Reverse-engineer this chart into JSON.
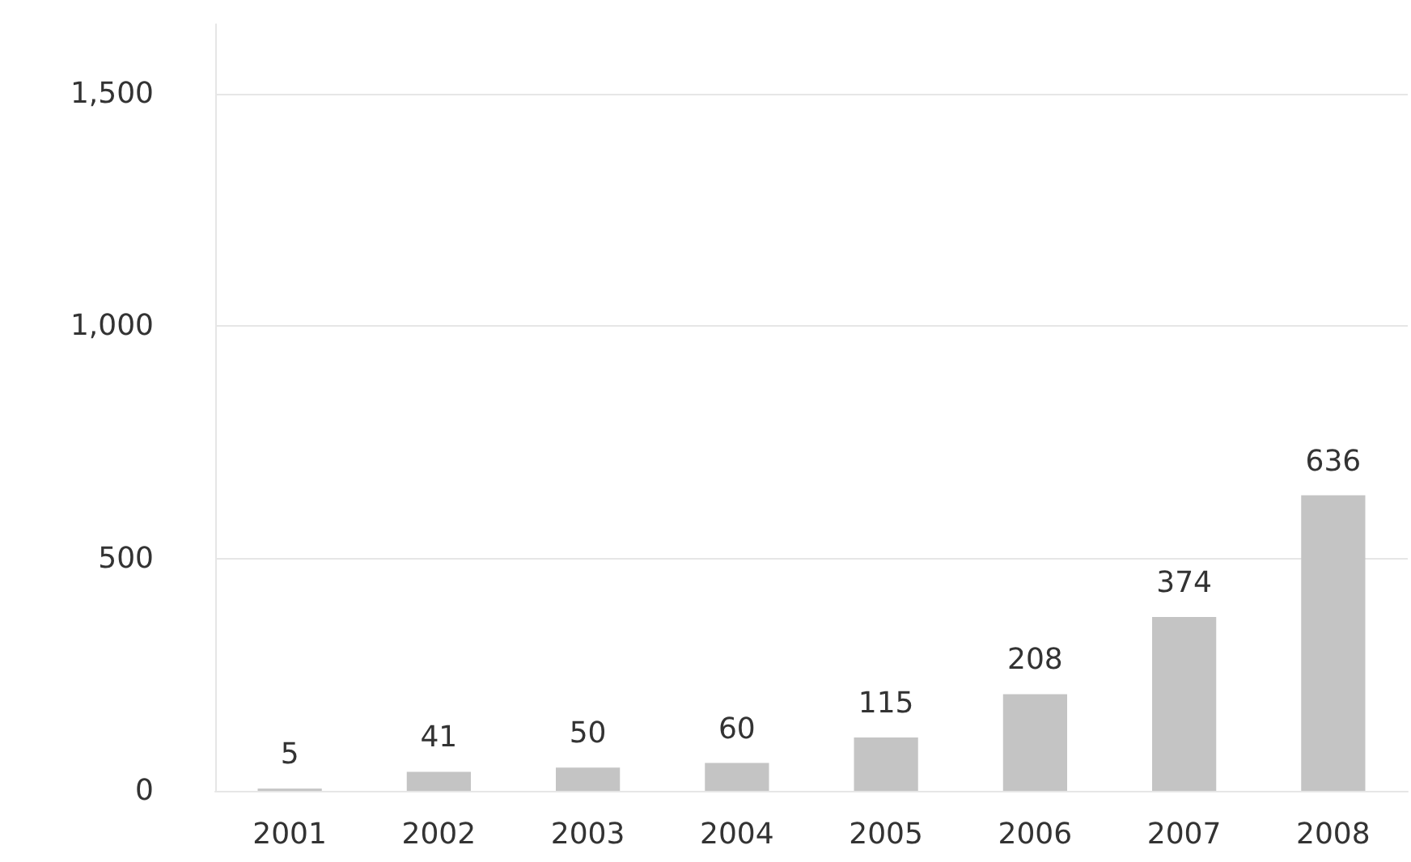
{
  "chart_data": {
    "type": "bar",
    "categories": [
      "2001",
      "2002",
      "2003",
      "2004",
      "2005",
      "2006",
      "2007",
      "2008"
    ],
    "values": [
      5,
      41,
      50,
      60,
      115,
      208,
      374,
      636
    ],
    "color": "#c4c4c4",
    "ylim": [
      0,
      1650
    ],
    "yticks": [
      0,
      {
        "value": 500,
        "label": "500"
      },
      {
        "value": 1000,
        "label": "1,000"
      },
      {
        "value": 1500,
        "label": "1,500"
      }
    ],
    "grid": "y",
    "data_labels": true
  }
}
